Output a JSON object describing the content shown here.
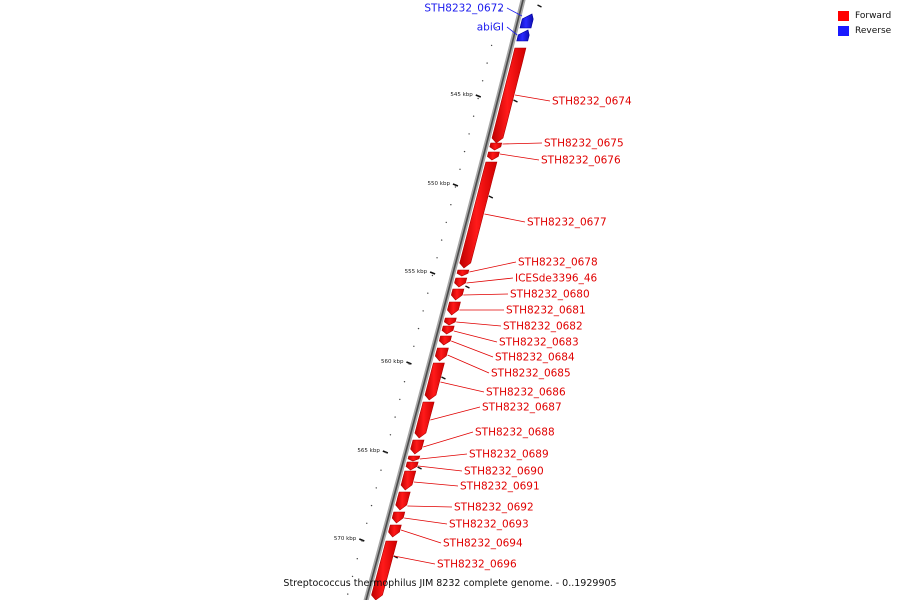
{
  "legend": {
    "forward_label": "Forward",
    "reverse_label": "Reverse",
    "forward_color": "#ff0000",
    "reverse_color": "#1a1aff"
  },
  "caption": "Streptococcus thermophilus JIM 8232 complete genome. - 0..1929905",
  "scale_ticks": [
    "545 kbp",
    "550 kbp",
    "555 kbp",
    "560 kbp",
    "565 kbp",
    "570 kbp"
  ],
  "genes": [
    {
      "name": "STH8232_0672",
      "strand": "reverse"
    },
    {
      "name": "abiGI",
      "strand": "reverse"
    },
    {
      "name": "STH8232_0674",
      "strand": "forward"
    },
    {
      "name": "STH8232_0675",
      "strand": "forward"
    },
    {
      "name": "STH8232_0676",
      "strand": "forward"
    },
    {
      "name": "STH8232_0677",
      "strand": "forward"
    },
    {
      "name": "STH8232_0678",
      "strand": "forward"
    },
    {
      "name": "ICESde3396_46",
      "strand": "forward"
    },
    {
      "name": "STH8232_0680",
      "strand": "forward"
    },
    {
      "name": "STH8232_0681",
      "strand": "forward"
    },
    {
      "name": "STH8232_0682",
      "strand": "forward"
    },
    {
      "name": "STH8232_0683",
      "strand": "forward"
    },
    {
      "name": "STH8232_0684",
      "strand": "forward"
    },
    {
      "name": "STH8232_0685",
      "strand": "forward"
    },
    {
      "name": "STH8232_0686",
      "strand": "forward"
    },
    {
      "name": "STH8232_0687",
      "strand": "forward"
    },
    {
      "name": "STH8232_0688",
      "strand": "forward"
    },
    {
      "name": "STH8232_0689",
      "strand": "forward"
    },
    {
      "name": "STH8232_0690",
      "strand": "forward"
    },
    {
      "name": "STH8232_0691",
      "strand": "forward"
    },
    {
      "name": "STH8232_0692",
      "strand": "forward"
    },
    {
      "name": "STH8232_0693",
      "strand": "forward"
    },
    {
      "name": "STH8232_0694",
      "strand": "forward"
    },
    {
      "name": "STH8232_0696",
      "strand": "forward"
    }
  ]
}
